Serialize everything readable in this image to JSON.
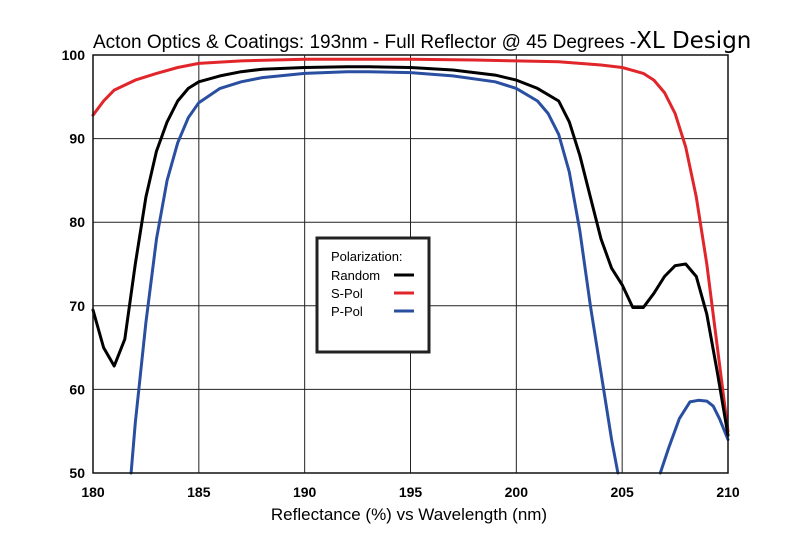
{
  "chart_data": {
    "type": "line",
    "title": "Acton Optics & Coatings:  193nm - Full Reflector @ 45 Degrees -",
    "title_suffix": "XL Design",
    "xlabel": "Reflectance (%) vs  Wavelength (nm)",
    "ylabel": "",
    "xlim": [
      180,
      210
    ],
    "ylim": [
      50,
      100
    ],
    "x_ticks": [
      180,
      185,
      190,
      195,
      200,
      205,
      210
    ],
    "y_ticks": [
      50,
      60,
      70,
      80,
      90,
      100
    ],
    "grid": true,
    "legend": {
      "title": "Polarization:",
      "placement": "center-left"
    },
    "series": [
      {
        "name": "Random",
        "color": "#000000",
        "x": [
          180,
          180.5,
          181,
          181.5,
          182,
          182.5,
          183,
          183.5,
          184,
          184.5,
          185,
          186,
          187,
          188,
          190,
          192,
          193,
          195,
          197,
          199,
          200,
          201,
          202,
          202.5,
          203,
          203.5,
          204,
          204.5,
          205,
          205.5,
          206,
          206.5,
          207,
          207.5,
          208,
          208.5,
          209,
          209.5,
          210
        ],
        "y": [
          69.5,
          65,
          62.8,
          66,
          75,
          83,
          88.5,
          92,
          94.5,
          96,
          96.8,
          97.5,
          98,
          98.3,
          98.5,
          98.6,
          98.6,
          98.5,
          98.2,
          97.6,
          97,
          96,
          94.5,
          92,
          88,
          83,
          78,
          74.5,
          72.5,
          69.8,
          69.8,
          71.5,
          73.5,
          74.8,
          75,
          73.5,
          69,
          62,
          54.5
        ]
      },
      {
        "name": "S-Pol",
        "color": "#e0262b",
        "x": [
          180,
          180.5,
          181,
          182,
          183,
          184,
          185,
          187,
          190,
          193,
          195,
          198,
          200,
          202,
          204,
          205,
          206,
          206.5,
          207,
          207.5,
          208,
          208.5,
          209,
          209.5,
          210
        ],
        "y": [
          92.8,
          94.5,
          95.8,
          97,
          97.8,
          98.5,
          99,
          99.3,
          99.5,
          99.5,
          99.5,
          99.4,
          99.3,
          99.2,
          98.8,
          98.5,
          97.8,
          97,
          95.5,
          93,
          89,
          83,
          75,
          65,
          55
        ]
      },
      {
        "name": "P-Pol",
        "color": "#2a4fa0",
        "x": [
          181.8,
          182,
          182.5,
          183,
          183.5,
          184,
          184.5,
          185,
          186,
          187,
          188,
          190,
          192,
          193,
          195,
          197,
          199,
          200,
          201,
          201.5,
          202,
          202.5,
          203,
          203.5,
          204,
          204.5,
          204.8
        ],
        "y": [
          50,
          56,
          68,
          78,
          85,
          89.5,
          92.5,
          94.3,
          96,
          96.8,
          97.3,
          97.8,
          98,
          98,
          97.9,
          97.5,
          96.8,
          96,
          94.5,
          93,
          90.5,
          86,
          79,
          70,
          62,
          54,
          50
        ]
      },
      {
        "name": "P-Pol",
        "color": "#2a4fa0",
        "x": [
          206.8,
          207.2,
          207.7,
          208.2,
          208.6,
          209,
          209.3,
          209.6,
          210
        ],
        "y": [
          50,
          53,
          56.5,
          58.5,
          58.7,
          58.6,
          58,
          56.5,
          54
        ]
      }
    ]
  }
}
